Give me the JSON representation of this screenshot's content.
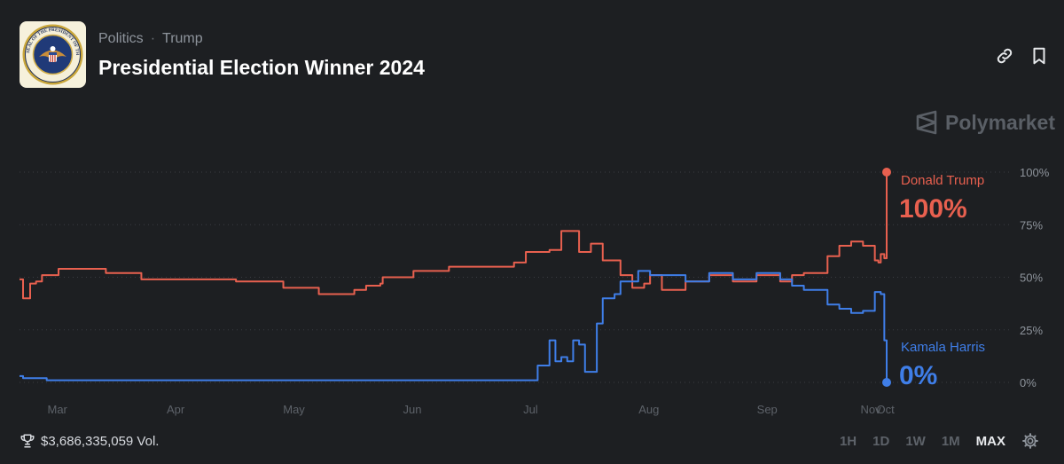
{
  "header": {
    "breadcrumb": [
      "Politics",
      "Trump"
    ],
    "breadcrumb_separator": "·",
    "title": "Presidential Election Winner 2024",
    "thumbnail_icon": "presidential-seal",
    "thumbnail_seal_text": "SEAL OF THE PRESIDENT OF THE UNITED STATES"
  },
  "actions": {
    "link_icon": "link-icon",
    "bookmark_icon": "bookmark-icon"
  },
  "brand": {
    "name": "Polymarket",
    "icon": "polymarket-logo-icon"
  },
  "footer": {
    "volume": "$3,686,335,059 Vol.",
    "trophy_icon": "trophy-icon",
    "ranges": [
      "1H",
      "1D",
      "1W",
      "1M",
      "MAX"
    ],
    "active_range": "MAX",
    "settings_icon": "gear-icon"
  },
  "colors": {
    "trump": "#e8604f",
    "harris": "#3f7ee8",
    "background": "#1d1f22",
    "grid": "#3a3d42"
  },
  "chart_data": {
    "type": "line",
    "title": "",
    "xlabel": "",
    "ylabel": "",
    "x_tick_labels": [
      "Mar",
      "Apr",
      "May",
      "Jun",
      "Jul",
      "Aug",
      "Sep",
      "Oct",
      "Nov"
    ],
    "y_tick_labels": [
      "100%",
      "75%",
      "50%",
      "25%",
      "0%"
    ],
    "ylim": [
      0,
      100
    ],
    "grid": true,
    "x_unit": "months since Jan 2024",
    "series": [
      {
        "name": "Donald Trump",
        "end_label": "100%",
        "x": [
          1.67,
          1.7,
          1.76,
          1.81,
          1.86,
          2.0,
          2.1,
          2.4,
          2.7,
          3.0,
          3.5,
          3.9,
          4.2,
          4.5,
          4.6,
          4.72,
          4.74,
          5.0,
          5.3,
          5.6,
          5.85,
          5.95,
          6.15,
          6.25,
          6.4,
          6.5,
          6.6,
          6.75,
          6.85,
          6.95,
          7.0,
          7.1,
          7.3,
          7.5,
          7.7,
          7.9,
          8.1,
          8.2,
          8.3,
          8.5,
          8.6,
          8.7,
          8.8,
          8.9,
          8.93,
          8.95,
          8.98,
          9.0
        ],
        "values": [
          49,
          40,
          47,
          48,
          51,
          54,
          54,
          52,
          49,
          49,
          48,
          45,
          42,
          44,
          46,
          47,
          50,
          53,
          55,
          55,
          57,
          62,
          63,
          72,
          62,
          66,
          58,
          51,
          45,
          47,
          51,
          44,
          48,
          51,
          48,
          51,
          48,
          51,
          52,
          60,
          65,
          67,
          65,
          58,
          57,
          61,
          59,
          100
        ]
      },
      {
        "name": "Kamala Harris",
        "end_label": "0%",
        "x": [
          1.67,
          1.7,
          1.9,
          2.2,
          2.5,
          3.0,
          3.5,
          4.0,
          4.5,
          5.0,
          5.5,
          5.85,
          6.0,
          6.05,
          6.15,
          6.2,
          6.25,
          6.3,
          6.35,
          6.4,
          6.45,
          6.55,
          6.6,
          6.7,
          6.75,
          6.9,
          7.0,
          7.3,
          7.5,
          7.7,
          7.9,
          8.1,
          8.2,
          8.3,
          8.5,
          8.6,
          8.7,
          8.8,
          8.9,
          8.95,
          8.98,
          9.0
        ],
        "values": [
          3,
          2,
          1,
          1,
          1,
          1,
          1,
          1,
          1,
          1,
          1,
          1,
          1,
          8,
          20,
          10,
          12,
          10,
          20,
          18,
          5,
          28,
          40,
          42,
          48,
          53,
          51,
          48,
          52,
          49,
          52,
          49,
          46,
          44,
          37,
          35,
          33,
          34,
          43,
          42,
          20,
          0
        ]
      }
    ]
  }
}
